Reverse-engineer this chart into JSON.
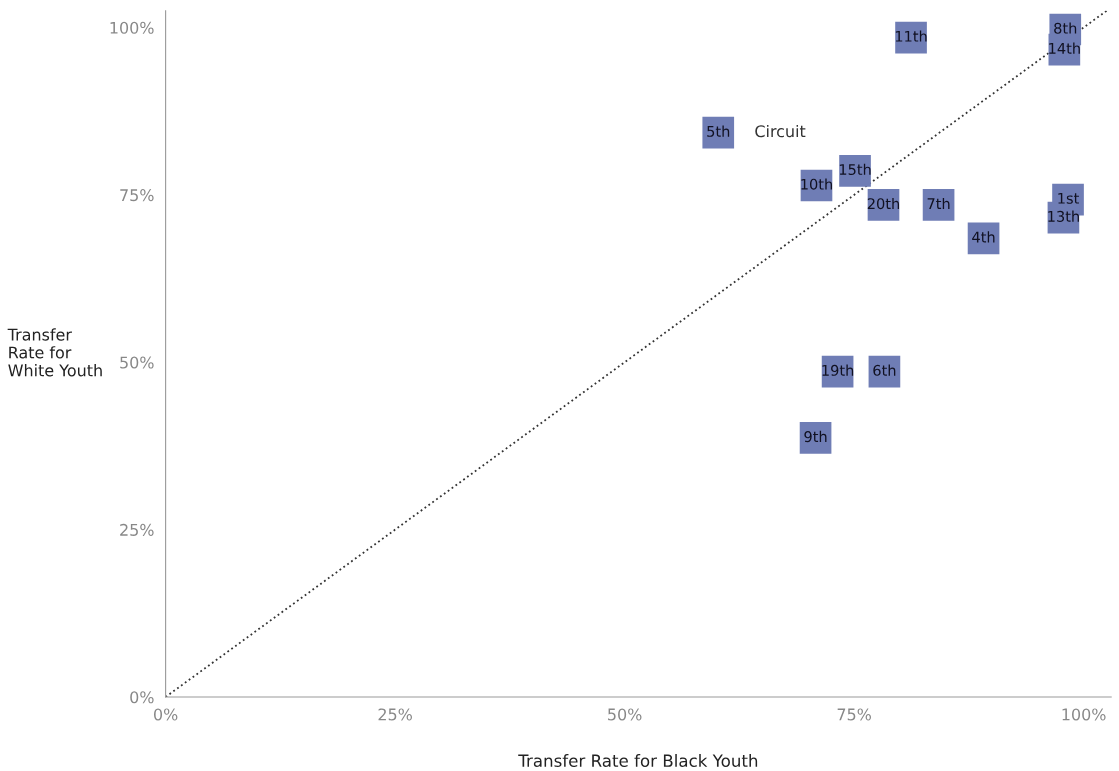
{
  "chart_data": {
    "type": "scatter",
    "xlabel": "Transfer Rate for Black Youth",
    "ylabel": "Transfer\nRate for\nWhite Youth",
    "xlim": [
      0,
      103
    ],
    "ylim": [
      0,
      102.5
    ],
    "xticks": [
      {
        "value": 0,
        "label": "0%"
      },
      {
        "value": 25,
        "label": "25%"
      },
      {
        "value": 50,
        "label": "50%"
      },
      {
        "value": 75,
        "label": "75%"
      },
      {
        "value": 100,
        "label": "100%"
      }
    ],
    "yticks": [
      {
        "value": 0,
        "label": "0%"
      },
      {
        "value": 25,
        "label": "25%"
      },
      {
        "value": 50,
        "label": "50%"
      },
      {
        "value": 75,
        "label": "75%"
      },
      {
        "value": 100,
        "label": "100%"
      }
    ],
    "grid": false,
    "legend": false,
    "marker": "square",
    "series": [
      {
        "type": "line",
        "x": [
          0,
          102.5
        ],
        "values": [
          0,
          102.5
        ],
        "color": "#333333",
        "line_style": "dotted",
        "marker": "none"
      },
      {
        "name": "11th",
        "x": [
          81.2
        ],
        "values": [
          98.5
        ],
        "color": "#6f7db5"
      },
      {
        "name": "8th",
        "x": [
          98.0
        ],
        "values": [
          99.7
        ],
        "color": "#6f7db5"
      },
      {
        "name": "14th",
        "x": [
          97.9
        ],
        "values": [
          96.7
        ],
        "color": "#6f7db5"
      },
      {
        "name": "5th",
        "x": [
          60.2
        ],
        "values": [
          84.3
        ],
        "color": "#6f7db5"
      },
      {
        "name": "15th",
        "x": [
          75.1
        ],
        "values": [
          78.6
        ],
        "color": "#6f7db5"
      },
      {
        "name": "10th",
        "x": [
          70.9
        ],
        "values": [
          76.4
        ],
        "color": "#6f7db5"
      },
      {
        "name": "20th",
        "x": [
          78.2
        ],
        "values": [
          73.5
        ],
        "color": "#6f7db5"
      },
      {
        "name": "7th",
        "x": [
          84.2
        ],
        "values": [
          73.5
        ],
        "color": "#6f7db5"
      },
      {
        "name": "1st",
        "x": [
          98.3
        ],
        "values": [
          74.3
        ],
        "color": "#6f7db5"
      },
      {
        "name": "13th",
        "x": [
          97.8
        ],
        "values": [
          71.6
        ],
        "color": "#6f7db5"
      },
      {
        "name": "4th",
        "x": [
          89.1
        ],
        "values": [
          68.5
        ],
        "color": "#6f7db5"
      },
      {
        "name": "19th",
        "x": [
          73.2
        ],
        "values": [
          48.6
        ],
        "color": "#6f7db5"
      },
      {
        "name": "6th",
        "x": [
          78.3
        ],
        "values": [
          48.6
        ],
        "color": "#6f7db5"
      },
      {
        "name": "9th",
        "x": [
          70.8
        ],
        "values": [
          38.7
        ],
        "color": "#6f7db5"
      }
    ],
    "annotations": [
      {
        "text": "Circuit",
        "x": 60.2,
        "y": 84.3
      }
    ]
  }
}
